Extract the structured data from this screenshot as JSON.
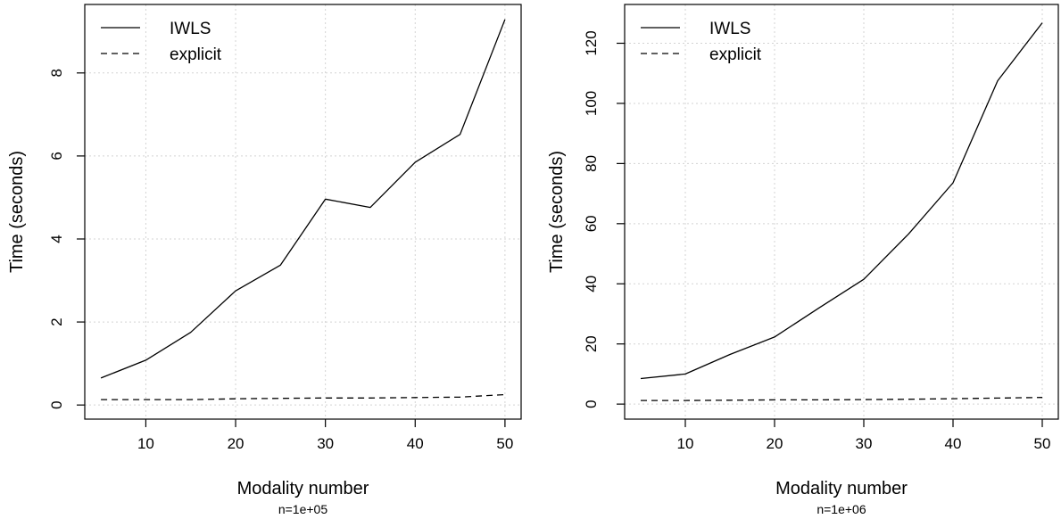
{
  "chart_data": [
    {
      "type": "line",
      "xlabel": "Modality number",
      "ylabel": "Time (seconds)",
      "subtitle": "n=1e+05",
      "x": [
        5,
        10,
        15,
        20,
        25,
        30,
        35,
        40,
        45,
        50
      ],
      "xticks": [
        10,
        20,
        30,
        40,
        50
      ],
      "yticks": [
        0,
        2,
        4,
        6,
        8
      ],
      "xlim": [
        3.2,
        51.8
      ],
      "ylim": [
        -0.34,
        9.65
      ],
      "grid": true,
      "legend": "top-left",
      "series": [
        {
          "name": "IWLS",
          "line_style": "solid",
          "values": [
            0.65,
            1.08,
            1.75,
            2.75,
            3.37,
            4.96,
            4.76,
            5.85,
            6.52,
            9.29
          ]
        },
        {
          "name": "explicit",
          "line_style": "dashed",
          "values": [
            0.13,
            0.13,
            0.13,
            0.15,
            0.16,
            0.17,
            0.17,
            0.18,
            0.19,
            0.25
          ]
        }
      ]
    },
    {
      "type": "line",
      "xlabel": "Modality number",
      "ylabel": "Time (seconds)",
      "subtitle": "n=1e+06",
      "x": [
        5,
        10,
        15,
        20,
        25,
        30,
        35,
        40,
        45,
        50
      ],
      "xticks": [
        10,
        20,
        30,
        40,
        50
      ],
      "yticks": [
        0,
        20,
        40,
        60,
        80,
        100,
        120
      ],
      "xlim": [
        3.2,
        51.8
      ],
      "ylim": [
        -5.0,
        132.9
      ],
      "grid": true,
      "legend": "top-left",
      "series": [
        {
          "name": "IWLS",
          "line_style": "solid",
          "values": [
            8.5,
            10.0,
            16.5,
            22.3,
            32.0,
            41.5,
            56.5,
            73.6,
            107.5,
            126.8
          ]
        },
        {
          "name": "explicit",
          "line_style": "dashed",
          "values": [
            1.2,
            1.2,
            1.3,
            1.4,
            1.4,
            1.5,
            1.6,
            1.8,
            2.0,
            2.2
          ]
        }
      ]
    }
  ]
}
